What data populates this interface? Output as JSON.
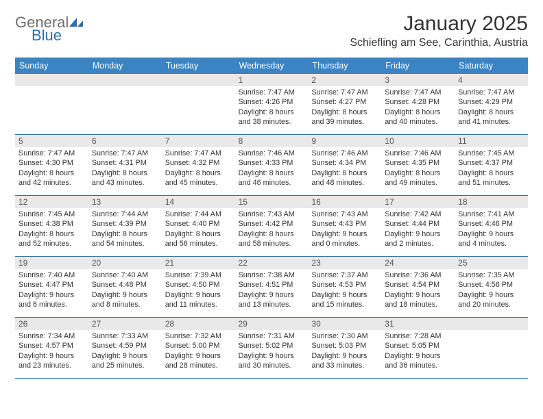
{
  "logo": {
    "text1": "General",
    "text2": "Blue"
  },
  "title": "January 2025",
  "location": "Schiefling am See, Carinthia, Austria",
  "dayNames": [
    "Sunday",
    "Monday",
    "Tuesday",
    "Wednesday",
    "Thursday",
    "Friday",
    "Saturday"
  ],
  "colors": {
    "headerBg": "#3a84c4",
    "headerText": "#ffffff",
    "dayNumBg": "#e9e9e9",
    "borderColor": "#3a6fa0",
    "logoGray": "#6d6e71",
    "logoBlue": "#2f6fa7"
  },
  "weeks": [
    [
      {
        "n": "",
        "sunrise": "",
        "sunset": "",
        "daylight1": "",
        "daylight2": ""
      },
      {
        "n": "",
        "sunrise": "",
        "sunset": "",
        "daylight1": "",
        "daylight2": ""
      },
      {
        "n": "",
        "sunrise": "",
        "sunset": "",
        "daylight1": "",
        "daylight2": ""
      },
      {
        "n": "1",
        "sunrise": "Sunrise: 7:47 AM",
        "sunset": "Sunset: 4:26 PM",
        "daylight1": "Daylight: 8 hours",
        "daylight2": "and 38 minutes."
      },
      {
        "n": "2",
        "sunrise": "Sunrise: 7:47 AM",
        "sunset": "Sunset: 4:27 PM",
        "daylight1": "Daylight: 8 hours",
        "daylight2": "and 39 minutes."
      },
      {
        "n": "3",
        "sunrise": "Sunrise: 7:47 AM",
        "sunset": "Sunset: 4:28 PM",
        "daylight1": "Daylight: 8 hours",
        "daylight2": "and 40 minutes."
      },
      {
        "n": "4",
        "sunrise": "Sunrise: 7:47 AM",
        "sunset": "Sunset: 4:29 PM",
        "daylight1": "Daylight: 8 hours",
        "daylight2": "and 41 minutes."
      }
    ],
    [
      {
        "n": "5",
        "sunrise": "Sunrise: 7:47 AM",
        "sunset": "Sunset: 4:30 PM",
        "daylight1": "Daylight: 8 hours",
        "daylight2": "and 42 minutes."
      },
      {
        "n": "6",
        "sunrise": "Sunrise: 7:47 AM",
        "sunset": "Sunset: 4:31 PM",
        "daylight1": "Daylight: 8 hours",
        "daylight2": "and 43 minutes."
      },
      {
        "n": "7",
        "sunrise": "Sunrise: 7:47 AM",
        "sunset": "Sunset: 4:32 PM",
        "daylight1": "Daylight: 8 hours",
        "daylight2": "and 45 minutes."
      },
      {
        "n": "8",
        "sunrise": "Sunrise: 7:46 AM",
        "sunset": "Sunset: 4:33 PM",
        "daylight1": "Daylight: 8 hours",
        "daylight2": "and 46 minutes."
      },
      {
        "n": "9",
        "sunrise": "Sunrise: 7:46 AM",
        "sunset": "Sunset: 4:34 PM",
        "daylight1": "Daylight: 8 hours",
        "daylight2": "and 48 minutes."
      },
      {
        "n": "10",
        "sunrise": "Sunrise: 7:46 AM",
        "sunset": "Sunset: 4:35 PM",
        "daylight1": "Daylight: 8 hours",
        "daylight2": "and 49 minutes."
      },
      {
        "n": "11",
        "sunrise": "Sunrise: 7:45 AM",
        "sunset": "Sunset: 4:37 PM",
        "daylight1": "Daylight: 8 hours",
        "daylight2": "and 51 minutes."
      }
    ],
    [
      {
        "n": "12",
        "sunrise": "Sunrise: 7:45 AM",
        "sunset": "Sunset: 4:38 PM",
        "daylight1": "Daylight: 8 hours",
        "daylight2": "and 52 minutes."
      },
      {
        "n": "13",
        "sunrise": "Sunrise: 7:44 AM",
        "sunset": "Sunset: 4:39 PM",
        "daylight1": "Daylight: 8 hours",
        "daylight2": "and 54 minutes."
      },
      {
        "n": "14",
        "sunrise": "Sunrise: 7:44 AM",
        "sunset": "Sunset: 4:40 PM",
        "daylight1": "Daylight: 8 hours",
        "daylight2": "and 56 minutes."
      },
      {
        "n": "15",
        "sunrise": "Sunrise: 7:43 AM",
        "sunset": "Sunset: 4:42 PM",
        "daylight1": "Daylight: 8 hours",
        "daylight2": "and 58 minutes."
      },
      {
        "n": "16",
        "sunrise": "Sunrise: 7:43 AM",
        "sunset": "Sunset: 4:43 PM",
        "daylight1": "Daylight: 9 hours",
        "daylight2": "and 0 minutes."
      },
      {
        "n": "17",
        "sunrise": "Sunrise: 7:42 AM",
        "sunset": "Sunset: 4:44 PM",
        "daylight1": "Daylight: 9 hours",
        "daylight2": "and 2 minutes."
      },
      {
        "n": "18",
        "sunrise": "Sunrise: 7:41 AM",
        "sunset": "Sunset: 4:46 PM",
        "daylight1": "Daylight: 9 hours",
        "daylight2": "and 4 minutes."
      }
    ],
    [
      {
        "n": "19",
        "sunrise": "Sunrise: 7:40 AM",
        "sunset": "Sunset: 4:47 PM",
        "daylight1": "Daylight: 9 hours",
        "daylight2": "and 6 minutes."
      },
      {
        "n": "20",
        "sunrise": "Sunrise: 7:40 AM",
        "sunset": "Sunset: 4:48 PM",
        "daylight1": "Daylight: 9 hours",
        "daylight2": "and 8 minutes."
      },
      {
        "n": "21",
        "sunrise": "Sunrise: 7:39 AM",
        "sunset": "Sunset: 4:50 PM",
        "daylight1": "Daylight: 9 hours",
        "daylight2": "and 11 minutes."
      },
      {
        "n": "22",
        "sunrise": "Sunrise: 7:38 AM",
        "sunset": "Sunset: 4:51 PM",
        "daylight1": "Daylight: 9 hours",
        "daylight2": "and 13 minutes."
      },
      {
        "n": "23",
        "sunrise": "Sunrise: 7:37 AM",
        "sunset": "Sunset: 4:53 PM",
        "daylight1": "Daylight: 9 hours",
        "daylight2": "and 15 minutes."
      },
      {
        "n": "24",
        "sunrise": "Sunrise: 7:36 AM",
        "sunset": "Sunset: 4:54 PM",
        "daylight1": "Daylight: 9 hours",
        "daylight2": "and 18 minutes."
      },
      {
        "n": "25",
        "sunrise": "Sunrise: 7:35 AM",
        "sunset": "Sunset: 4:56 PM",
        "daylight1": "Daylight: 9 hours",
        "daylight2": "and 20 minutes."
      }
    ],
    [
      {
        "n": "26",
        "sunrise": "Sunrise: 7:34 AM",
        "sunset": "Sunset: 4:57 PM",
        "daylight1": "Daylight: 9 hours",
        "daylight2": "and 23 minutes."
      },
      {
        "n": "27",
        "sunrise": "Sunrise: 7:33 AM",
        "sunset": "Sunset: 4:59 PM",
        "daylight1": "Daylight: 9 hours",
        "daylight2": "and 25 minutes."
      },
      {
        "n": "28",
        "sunrise": "Sunrise: 7:32 AM",
        "sunset": "Sunset: 5:00 PM",
        "daylight1": "Daylight: 9 hours",
        "daylight2": "and 28 minutes."
      },
      {
        "n": "29",
        "sunrise": "Sunrise: 7:31 AM",
        "sunset": "Sunset: 5:02 PM",
        "daylight1": "Daylight: 9 hours",
        "daylight2": "and 30 minutes."
      },
      {
        "n": "30",
        "sunrise": "Sunrise: 7:30 AM",
        "sunset": "Sunset: 5:03 PM",
        "daylight1": "Daylight: 9 hours",
        "daylight2": "and 33 minutes."
      },
      {
        "n": "31",
        "sunrise": "Sunrise: 7:28 AM",
        "sunset": "Sunset: 5:05 PM",
        "daylight1": "Daylight: 9 hours",
        "daylight2": "and 36 minutes."
      },
      {
        "n": "",
        "sunrise": "",
        "sunset": "",
        "daylight1": "",
        "daylight2": ""
      }
    ]
  ]
}
